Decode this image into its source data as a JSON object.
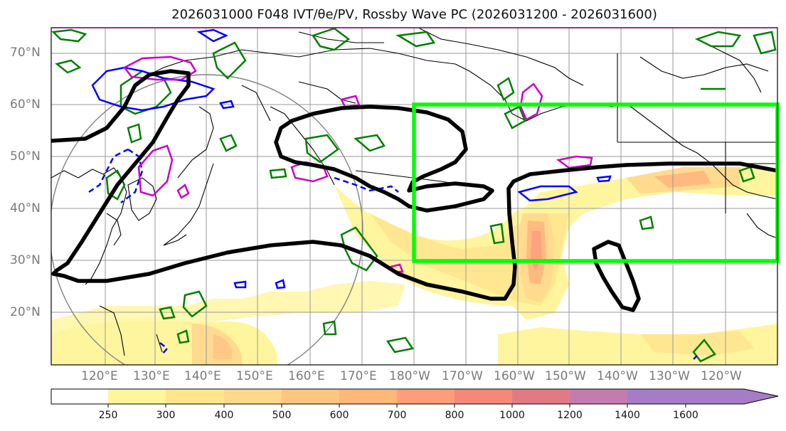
{
  "title": "2026031000 F048 IVT/θe/PV, Rossby Wave PC (2026031200 - 2026031600)",
  "map": {
    "lat_labels": [
      "70°N",
      "60°N",
      "50°N",
      "40°N",
      "30°N",
      "20°N"
    ],
    "lon_labels": [
      "120°E",
      "130°E",
      "140°E",
      "150°E",
      "160°E",
      "170°E",
      "180°W",
      "170°W",
      "160°W",
      "150°W",
      "140°W",
      "130°W",
      "120°W"
    ],
    "highlight_box_color": "#00ff00",
    "contour_colors": {
      "pv": "#000000",
      "theta_e_pos": "#cc00cc",
      "theta_e_neg": "#0000ff",
      "other": "#008000"
    }
  },
  "colorbar": {
    "ticks": [
      "250",
      "300",
      "400",
      "500",
      "600",
      "700",
      "800",
      "1000",
      "1200",
      "1400",
      "1600"
    ],
    "colors": [
      "#ffffff",
      "#fff59a",
      "#ffe68c",
      "#ffd98a",
      "#ffc680",
      "#ffb77a",
      "#ff9e78",
      "#f58878",
      "#e27a86",
      "#c57ab0",
      "#a77cc6"
    ]
  }
}
